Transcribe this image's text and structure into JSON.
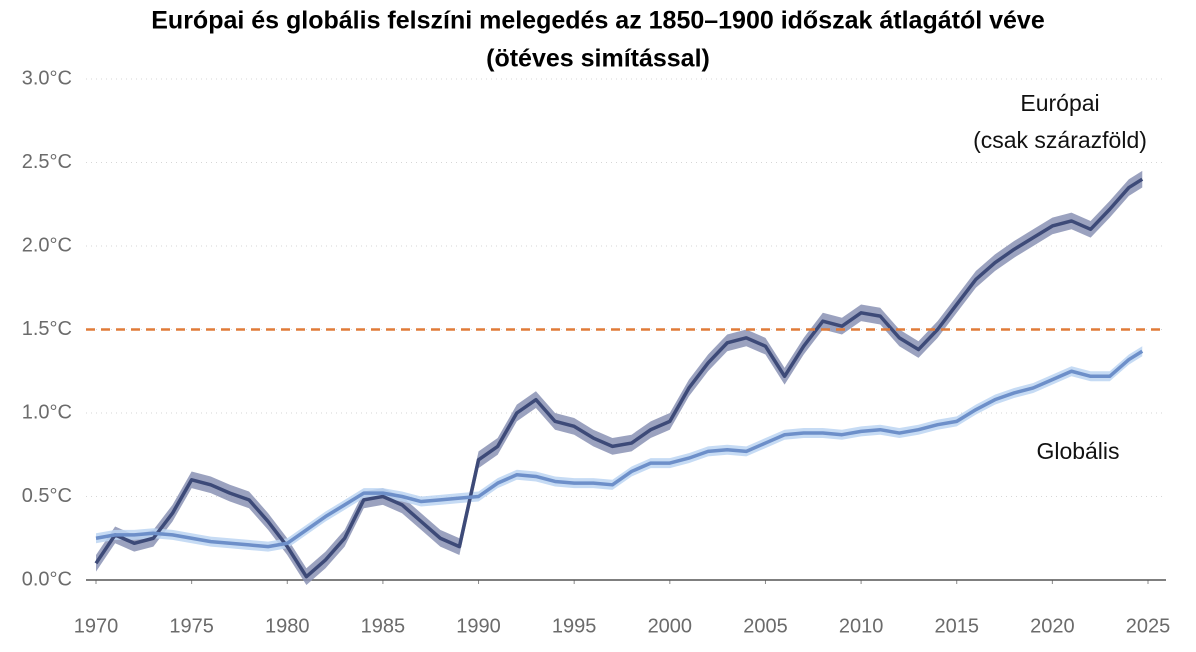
{
  "chart_data": {
    "type": "line",
    "title": "Európai és globális felszíni melegedés az 1850–1900 időszak átlagától véve",
    "subtitle": "(ötéves simítással)",
    "x": [
      1970,
      1971,
      1972,
      1973,
      1974,
      1975,
      1976,
      1977,
      1978,
      1979,
      1980,
      1981,
      1982,
      1983,
      1984,
      1985,
      1986,
      1987,
      1988,
      1989,
      1990,
      1991,
      1992,
      1993,
      1994,
      1995,
      1996,
      1997,
      1998,
      1999,
      2000,
      2001,
      2002,
      2003,
      2004,
      2005,
      2006,
      2007,
      2008,
      2009,
      2010,
      2011,
      2012,
      2013,
      2014,
      2015,
      2016,
      2017,
      2018,
      2019,
      2020,
      2021,
      2022,
      2023,
      2024,
      2024.7
    ],
    "series": [
      {
        "name": "Európai",
        "note": "(csak szárazföld)",
        "color": "#3d4a78",
        "band_color": "#8a92b4",
        "uncertainty": 0.05,
        "values": [
          0.1,
          0.27,
          0.22,
          0.25,
          0.4,
          0.6,
          0.57,
          0.52,
          0.48,
          0.35,
          0.2,
          0.02,
          0.12,
          0.25,
          0.48,
          0.5,
          0.45,
          0.35,
          0.25,
          0.2,
          0.72,
          0.8,
          1.0,
          1.08,
          0.95,
          0.92,
          0.85,
          0.8,
          0.82,
          0.9,
          0.95,
          1.15,
          1.3,
          1.42,
          1.45,
          1.4,
          1.22,
          1.4,
          1.55,
          1.52,
          1.6,
          1.58,
          1.45,
          1.38,
          1.5,
          1.65,
          1.8,
          1.9,
          1.98,
          2.05,
          2.12,
          2.15,
          2.1,
          2.22,
          2.35,
          2.4
        ]
      },
      {
        "name": "Globális",
        "color": "#6d8fc9",
        "band_color": "#bcd5f2",
        "uncertainty": 0.03,
        "values": [
          0.25,
          0.27,
          0.27,
          0.28,
          0.27,
          0.25,
          0.23,
          0.22,
          0.21,
          0.2,
          0.22,
          0.3,
          0.38,
          0.45,
          0.52,
          0.52,
          0.5,
          0.47,
          0.48,
          0.49,
          0.5,
          0.58,
          0.63,
          0.62,
          0.59,
          0.58,
          0.58,
          0.57,
          0.65,
          0.7,
          0.7,
          0.73,
          0.77,
          0.78,
          0.77,
          0.82,
          0.87,
          0.88,
          0.88,
          0.87,
          0.89,
          0.9,
          0.88,
          0.9,
          0.93,
          0.95,
          1.02,
          1.08,
          1.12,
          1.15,
          1.2,
          1.25,
          1.22,
          1.22,
          1.32,
          1.37
        ]
      }
    ],
    "reference_line": {
      "value": 1.5,
      "color": "#e07b39"
    },
    "xlim": [
      1970,
      2025
    ],
    "xticks": [
      1970,
      1975,
      1980,
      1985,
      1990,
      1995,
      2000,
      2005,
      2010,
      2015,
      2020,
      2025
    ],
    "ylim": [
      0,
      3
    ],
    "yticks": [
      {
        "value": 0,
        "label": "0.0°C"
      },
      {
        "value": 0.5,
        "label": "0.5°C"
      },
      {
        "value": 1,
        "label": "1.0°C"
      },
      {
        "value": 1.5,
        "label": "1.5°C"
      },
      {
        "value": 2,
        "label": "2.0°C"
      },
      {
        "value": 2.5,
        "label": "2.5°C"
      },
      {
        "value": 3,
        "label": "3.0°C"
      }
    ],
    "grid": true
  }
}
